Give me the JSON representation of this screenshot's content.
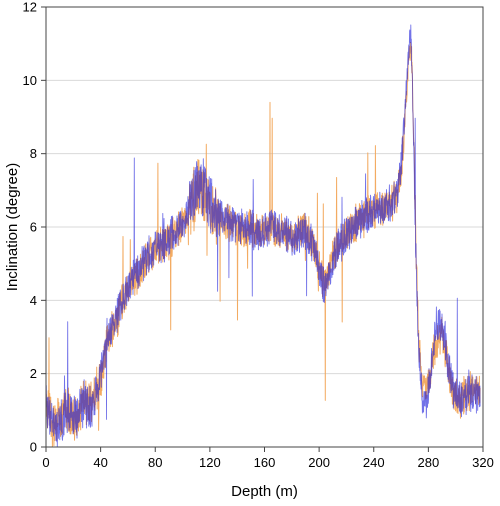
{
  "chart_data": {
    "type": "line",
    "title": "",
    "xlabel": "Depth (m)",
    "ylabel": "Inclination (degree)",
    "xlim": [
      0,
      320
    ],
    "ylim": [
      0,
      12
    ],
    "x_ticks": [
      0,
      40,
      80,
      120,
      160,
      200,
      240,
      280,
      320
    ],
    "y_ticks": [
      0,
      2,
      4,
      6,
      8,
      10,
      12
    ],
    "grid": "horizontal",
    "legend": "none",
    "series": [
      {
        "color": "#f2a65a",
        "style": "noisy trace, drawn behind",
        "x": [
          0,
          2,
          5,
          8,
          12,
          15,
          18,
          22,
          25,
          28,
          30,
          34,
          38,
          40,
          42,
          45,
          48,
          52,
          55,
          60,
          65,
          70,
          75,
          80,
          85,
          90,
          95,
          100,
          104,
          107,
          110,
          113,
          116,
          118,
          121,
          125,
          130,
          135,
          140,
          145,
          150,
          155,
          160,
          165,
          170,
          175,
          180,
          185,
          190,
          195,
          200,
          204,
          207,
          210,
          215,
          220,
          225,
          230,
          235,
          240,
          245,
          250,
          254,
          257,
          260,
          262,
          264,
          265,
          266,
          267,
          268,
          269,
          270,
          271,
          272,
          273,
          274,
          275,
          276,
          277,
          278,
          280,
          282,
          284,
          286,
          288,
          290,
          292,
          294,
          296,
          298,
          300,
          303,
          306,
          309,
          312,
          315,
          318
        ],
        "y": [
          1.2,
          0.9,
          0.6,
          0.7,
          0.8,
          1.1,
          0.9,
          0.8,
          1.0,
          1.3,
          1.1,
          1.2,
          1.6,
          1.9,
          2.3,
          3.0,
          3.2,
          3.5,
          3.9,
          4.3,
          4.6,
          4.9,
          5.2,
          5.4,
          5.5,
          5.6,
          5.8,
          6.0,
          6.3,
          6.6,
          7.0,
          7.1,
          6.9,
          6.7,
          6.5,
          6.3,
          6.2,
          6.1,
          6.0,
          5.9,
          6.0,
          5.8,
          5.9,
          6.0,
          5.8,
          5.9,
          5.7,
          5.9,
          6.0,
          5.6,
          5.0,
          4.4,
          4.8,
          5.2,
          5.6,
          5.9,
          6.0,
          6.2,
          6.3,
          6.4,
          6.5,
          6.6,
          6.7,
          6.9,
          7.5,
          8.5,
          9.6,
          10.3,
          10.8,
          11.0,
          10.4,
          9.0,
          7.2,
          5.5,
          4.0,
          3.0,
          2.4,
          1.9,
          1.6,
          1.5,
          1.5,
          1.6,
          2.2,
          2.6,
          2.8,
          3.0,
          3.1,
          2.8,
          2.3,
          1.8,
          1.5,
          1.4,
          1.3,
          1.4,
          1.5,
          1.6,
          1.5,
          1.5
        ]
      },
      {
        "color": "#1414d8",
        "style": "noisy trace, drawn in front",
        "x": [
          0,
          2,
          5,
          8,
          12,
          15,
          18,
          22,
          25,
          28,
          30,
          34,
          38,
          40,
          42,
          45,
          48,
          52,
          55,
          60,
          65,
          70,
          75,
          80,
          85,
          90,
          95,
          100,
          104,
          107,
          110,
          113,
          116,
          118,
          121,
          125,
          130,
          135,
          140,
          145,
          150,
          155,
          160,
          165,
          170,
          175,
          180,
          185,
          190,
          195,
          200,
          204,
          207,
          210,
          215,
          220,
          225,
          230,
          235,
          240,
          245,
          250,
          254,
          257,
          260,
          262,
          264,
          265,
          266,
          267,
          268,
          269,
          270,
          271,
          272,
          273,
          274,
          275,
          276,
          277,
          278,
          280,
          282,
          284,
          286,
          288,
          290,
          292,
          294,
          296,
          298,
          300,
          303,
          306,
          309,
          312,
          315,
          318
        ],
        "y": [
          1.3,
          0.9,
          0.6,
          0.6,
          0.8,
          1.0,
          0.9,
          0.8,
          1.0,
          1.2,
          1.0,
          1.1,
          1.5,
          1.8,
          2.3,
          3.1,
          3.2,
          3.6,
          4.0,
          4.4,
          4.7,
          5.0,
          5.2,
          5.4,
          5.5,
          5.7,
          5.9,
          6.1,
          6.4,
          6.8,
          7.2,
          7.3,
          7.0,
          6.8,
          6.5,
          6.3,
          6.2,
          6.1,
          6.0,
          6.0,
          6.0,
          5.8,
          5.9,
          6.0,
          5.9,
          5.9,
          5.7,
          5.8,
          5.9,
          5.5,
          4.9,
          4.3,
          4.7,
          5.1,
          5.5,
          5.8,
          6.0,
          6.2,
          6.3,
          6.4,
          6.5,
          6.6,
          6.7,
          6.9,
          7.6,
          8.7,
          9.8,
          10.5,
          11.0,
          11.2,
          10.5,
          8.8,
          6.8,
          5.0,
          3.6,
          2.6,
          2.1,
          1.6,
          1.3,
          1.1,
          1.2,
          1.5,
          2.3,
          2.9,
          3.3,
          3.4,
          3.3,
          3.0,
          2.4,
          1.9,
          1.6,
          1.4,
          1.3,
          1.3,
          1.4,
          1.5,
          1.4,
          1.4
        ]
      }
    ]
  }
}
